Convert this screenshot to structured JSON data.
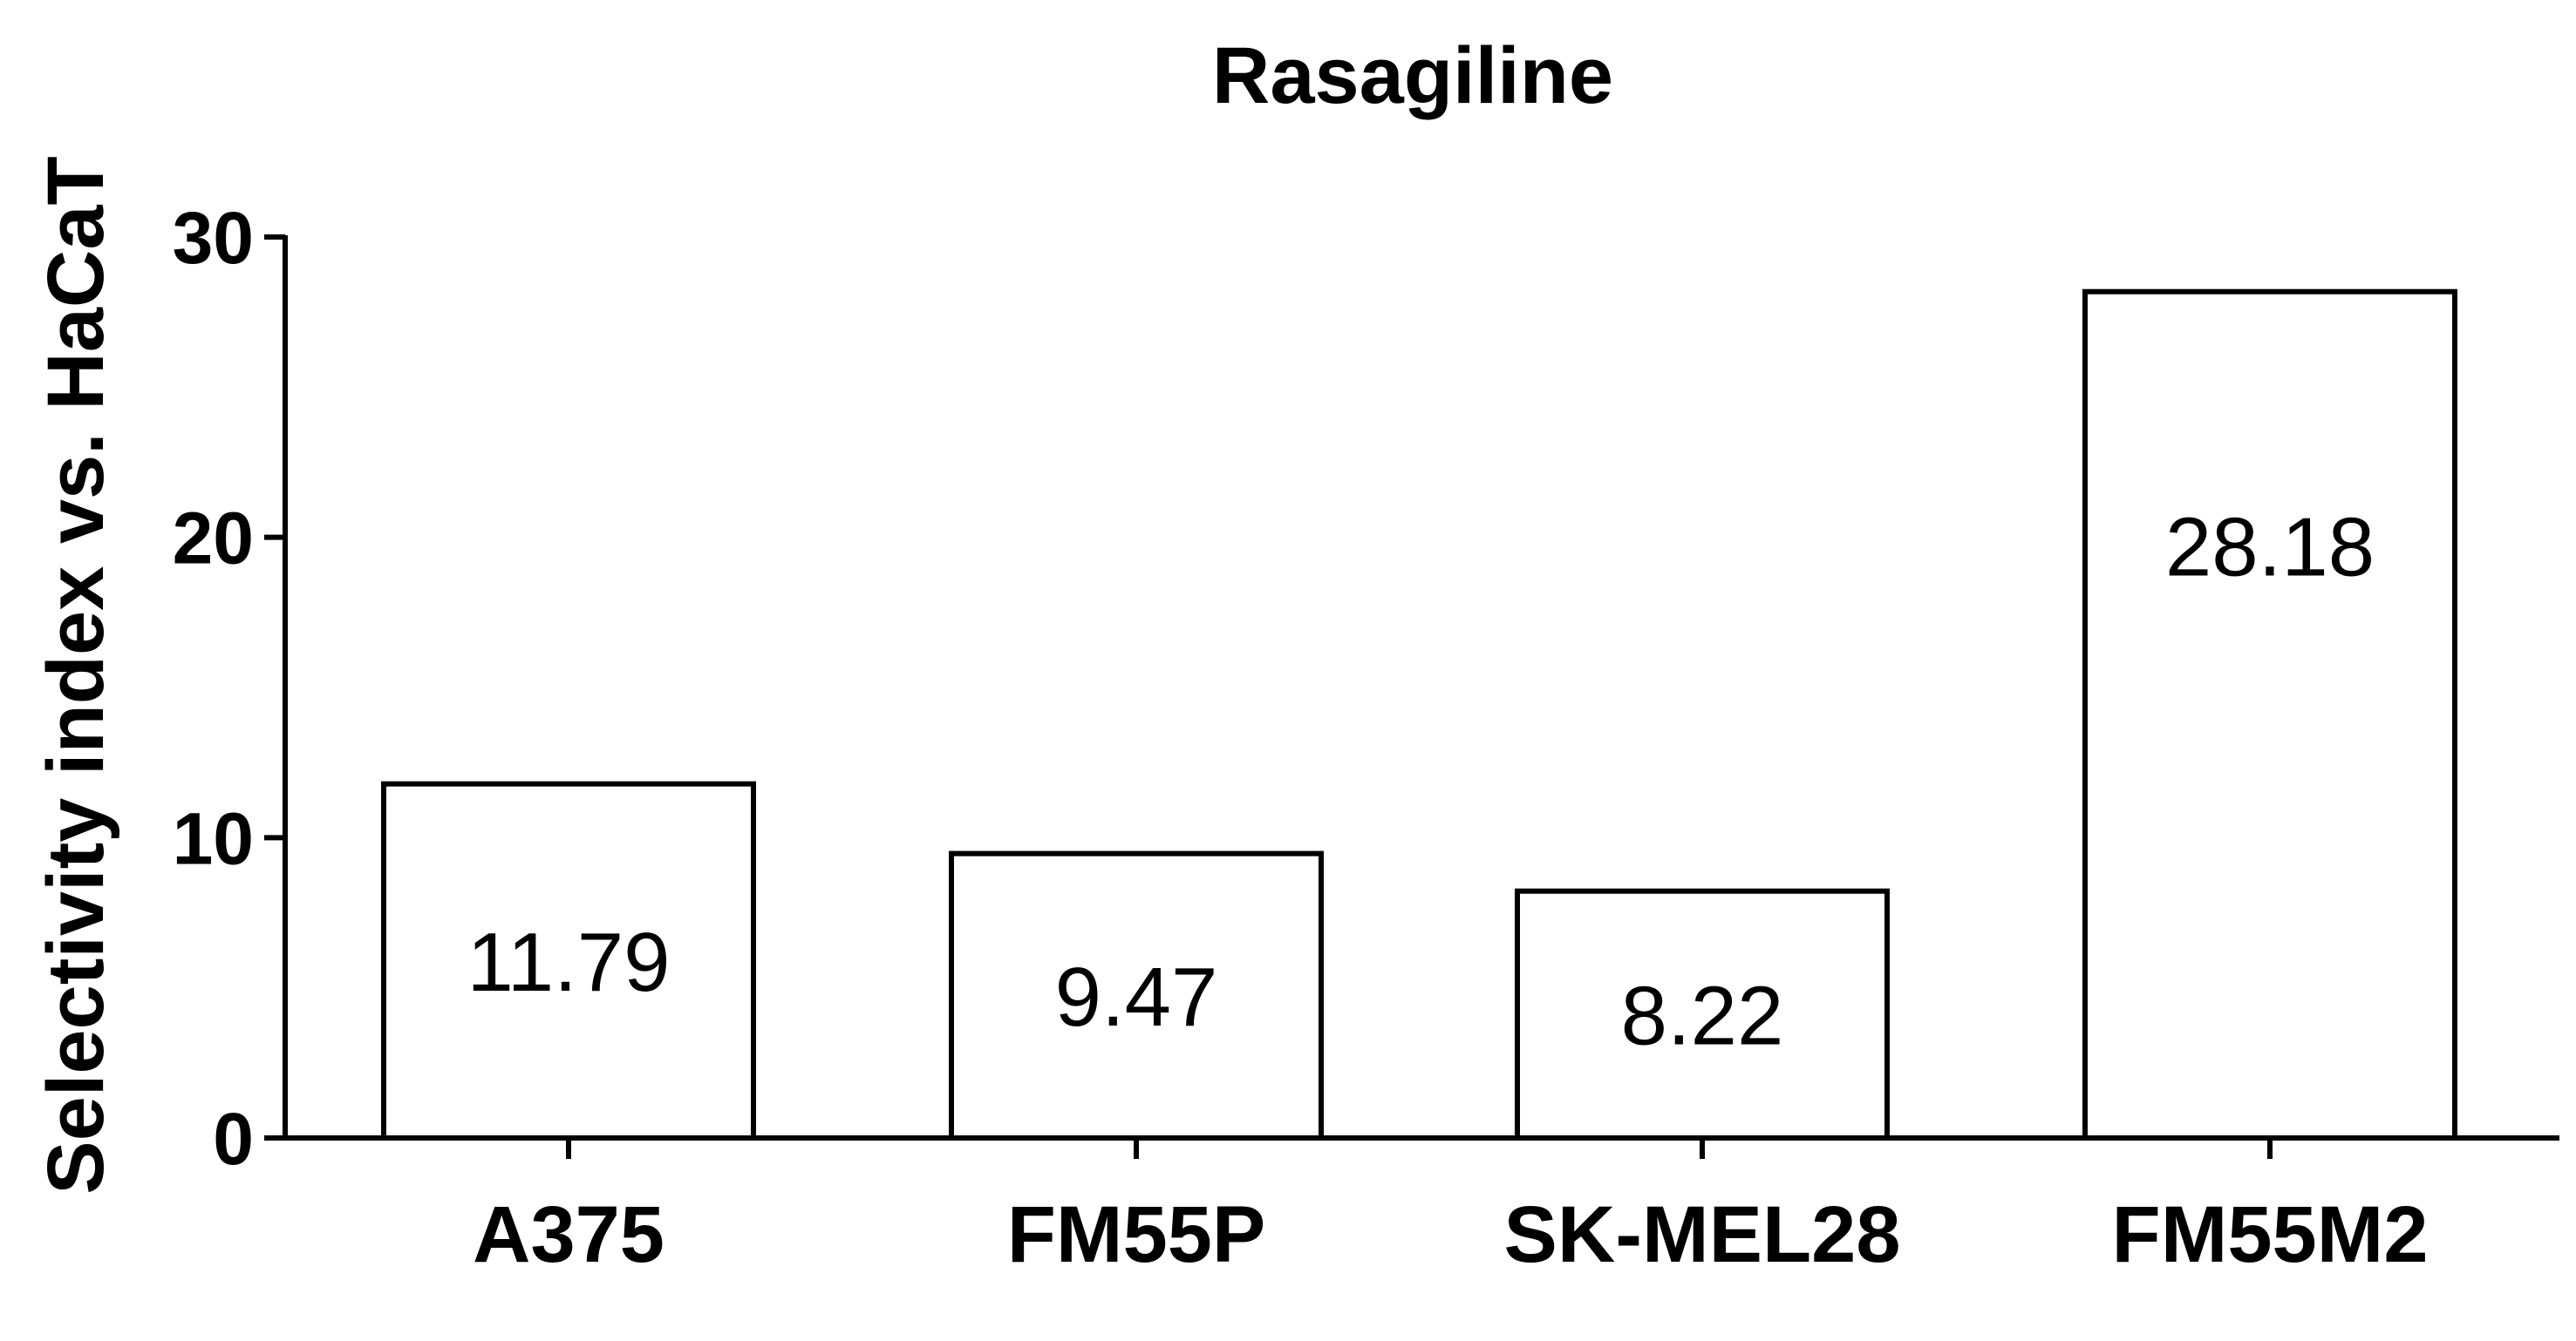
{
  "chart_data": {
    "type": "bar",
    "title": "Rasagiline",
    "ylabel": "Selectivity index vs. HaCaT",
    "xlabel": "",
    "categories": [
      "A375",
      "FM55P",
      "SK-MEL28",
      "FM55M2"
    ],
    "values": [
      11.79,
      9.47,
      8.22,
      28.18
    ],
    "data_labels": [
      "11.79",
      "9.47",
      "8.22",
      "28.18"
    ],
    "ylim": [
      0,
      30
    ],
    "yticks": [
      0,
      10,
      20,
      30
    ],
    "ytick_labels": [
      "0",
      "10",
      "20",
      "30"
    ],
    "grid": false,
    "legend": "none",
    "colors": {
      "bar_fill": "#ffffff",
      "bar_stroke": "#000000",
      "axis": "#000000",
      "text": "#000000"
    }
  }
}
